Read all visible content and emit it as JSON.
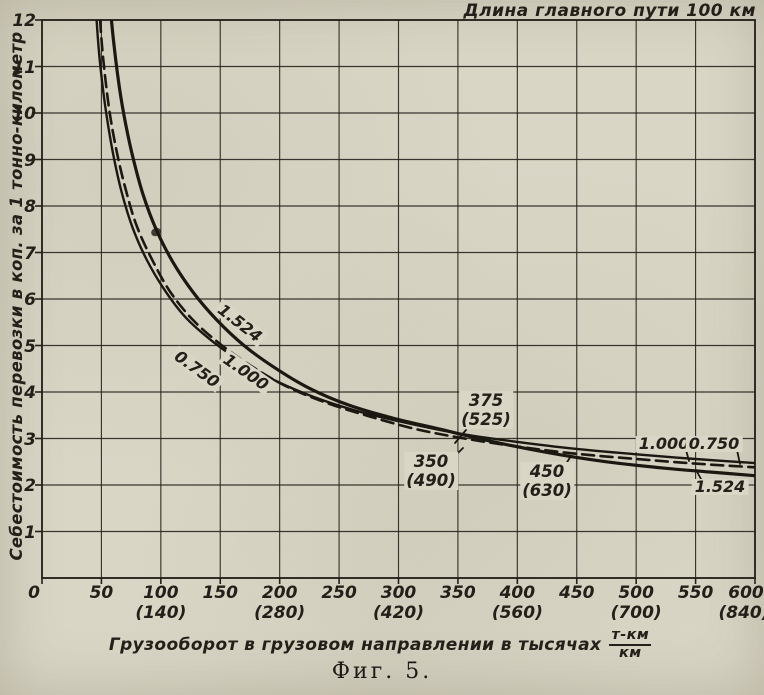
{
  "caption": "Фиг. 5.",
  "colors": {
    "paper": "#d9d6c6",
    "ink": "#23201a",
    "curve": "#1b1812"
  },
  "chart_data": {
    "type": "line",
    "title": "Длина главного пути 100 км",
    "ylabel": "Себестоимость перевозки в коп. за 1 тонно-километр",
    "xlabel": "Грузооборот в грузовом направлении в тысячах",
    "xlabel_unit_numerator": "т-км",
    "xlabel_unit_denominator": "км",
    "xlim": [
      0,
      600
    ],
    "ylim": [
      0,
      12
    ],
    "grid": "both",
    "legend_position": "on-curve",
    "xticks": [
      0,
      50,
      100,
      150,
      200,
      250,
      300,
      350,
      400,
      450,
      500,
      550,
      600
    ],
    "xticks_secondary": [
      {
        "x": 100,
        "label": "(140)"
      },
      {
        "x": 200,
        "label": "(280)"
      },
      {
        "x": 300,
        "label": "(420)"
      },
      {
        "x": 400,
        "label": "(560)"
      },
      {
        "x": 500,
        "label": "(700)"
      },
      {
        "x": 600,
        "label": "(840)"
      }
    ],
    "yticks": [
      0,
      1,
      2,
      3,
      4,
      5,
      6,
      7,
      8,
      9,
      10,
      11,
      12
    ],
    "series": [
      {
        "name": "1.524",
        "style": "solid",
        "stroke_width": 3.2,
        "points": [
          [
            57,
            12.4
          ],
          [
            60,
            11.6
          ],
          [
            64,
            10.75
          ],
          [
            69,
            9.95
          ],
          [
            76,
            9.1
          ],
          [
            85,
            8.25
          ],
          [
            96,
            7.5
          ],
          [
            110,
            6.8
          ],
          [
            127,
            6.15
          ],
          [
            147,
            5.55
          ],
          [
            170,
            5.0
          ],
          [
            196,
            4.52
          ],
          [
            225,
            4.08
          ],
          [
            258,
            3.72
          ],
          [
            295,
            3.44
          ],
          [
            335,
            3.2
          ],
          [
            378,
            2.94
          ],
          [
            425,
            2.7
          ],
          [
            475,
            2.5
          ],
          [
            525,
            2.36
          ],
          [
            562,
            2.28
          ],
          [
            600,
            2.2
          ]
        ]
      },
      {
        "name": "1.000",
        "style": "solid",
        "stroke_width": 2.4,
        "points": [
          [
            45,
            12.4
          ],
          [
            47,
            11.6
          ],
          [
            50,
            10.8
          ],
          [
            54,
            10.0
          ],
          [
            60,
            9.1
          ],
          [
            67,
            8.3
          ],
          [
            76,
            7.55
          ],
          [
            88,
            6.85
          ],
          [
            103,
            6.2
          ],
          [
            121,
            5.6
          ],
          [
            143,
            5.1
          ],
          [
            168,
            4.65
          ],
          [
            196,
            4.25
          ],
          [
            228,
            3.9
          ],
          [
            264,
            3.6
          ],
          [
            304,
            3.35
          ],
          [
            348,
            3.12
          ],
          [
            396,
            2.94
          ],
          [
            448,
            2.78
          ],
          [
            500,
            2.66
          ],
          [
            550,
            2.56
          ],
          [
            600,
            2.47
          ]
        ]
      },
      {
        "name": "0.750",
        "style": "dashed",
        "stroke_width": 2.6,
        "points": [
          [
            48,
            12.4
          ],
          [
            50,
            11.6
          ],
          [
            53,
            10.8
          ],
          [
            57,
            10.0
          ],
          [
            63,
            9.15
          ],
          [
            71,
            8.3
          ],
          [
            80,
            7.55
          ],
          [
            93,
            6.83
          ],
          [
            108,
            6.15
          ],
          [
            127,
            5.55
          ],
          [
            150,
            5.03
          ],
          [
            176,
            4.56
          ],
          [
            205,
            4.13
          ],
          [
            238,
            3.78
          ],
          [
            275,
            3.48
          ],
          [
            315,
            3.2
          ],
          [
            358,
            2.99
          ],
          [
            405,
            2.81
          ],
          [
            450,
            2.67
          ],
          [
            500,
            2.56
          ],
          [
            550,
            2.46
          ],
          [
            600,
            2.38
          ]
        ]
      }
    ],
    "annotations": [
      {
        "value": "375",
        "secondary": "(525)"
      },
      {
        "value": "350",
        "secondary": "(490)"
      },
      {
        "value": "450",
        "secondary": "(630)"
      }
    ]
  }
}
